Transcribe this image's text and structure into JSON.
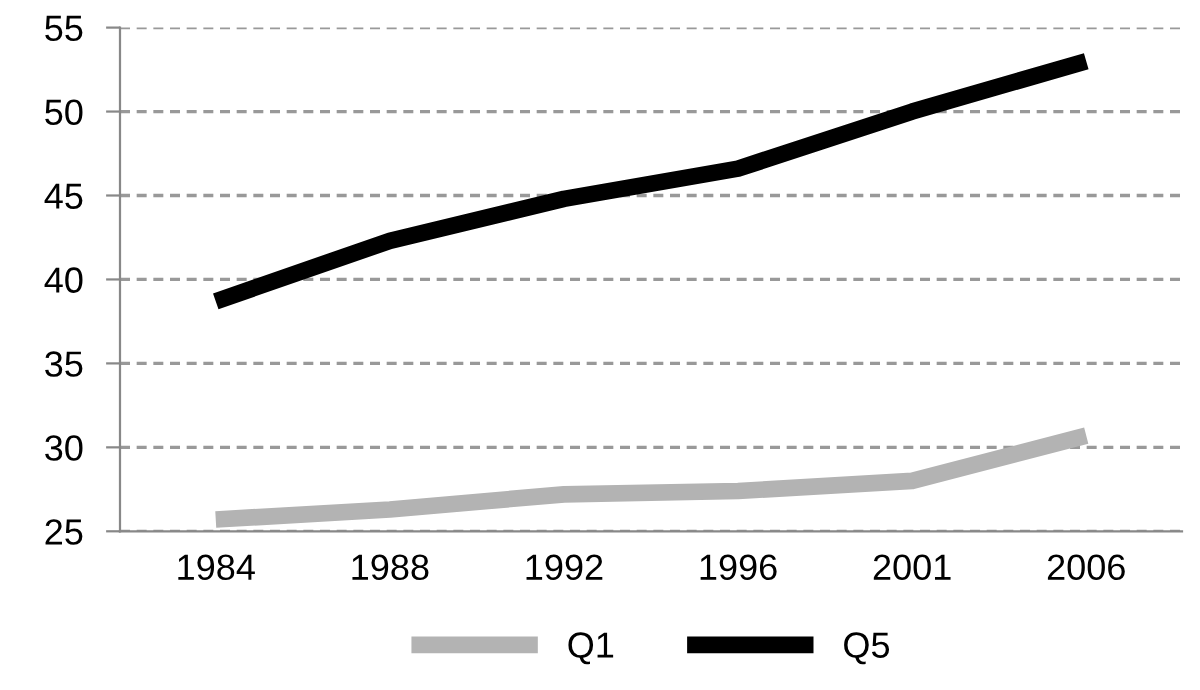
{
  "chart_data": {
    "type": "line",
    "categories": [
      "1984",
      "1988",
      "1992",
      "1996",
      "2001",
      "2006"
    ],
    "series": [
      {
        "name": "Q1",
        "color": "#b3b3b3",
        "values": [
          25.7,
          26.3,
          27.2,
          27.4,
          28.0,
          30.7
        ]
      },
      {
        "name": "Q5",
        "color": "#000000",
        "values": [
          38.7,
          42.3,
          44.8,
          46.6,
          50.0,
          53.0
        ]
      }
    ],
    "ylim": [
      25,
      55
    ],
    "yticks": [
      25,
      30,
      35,
      40,
      45,
      50,
      55
    ],
    "grid": "y",
    "legend": "bottom",
    "marker": "none",
    "line_style": "solid"
  }
}
